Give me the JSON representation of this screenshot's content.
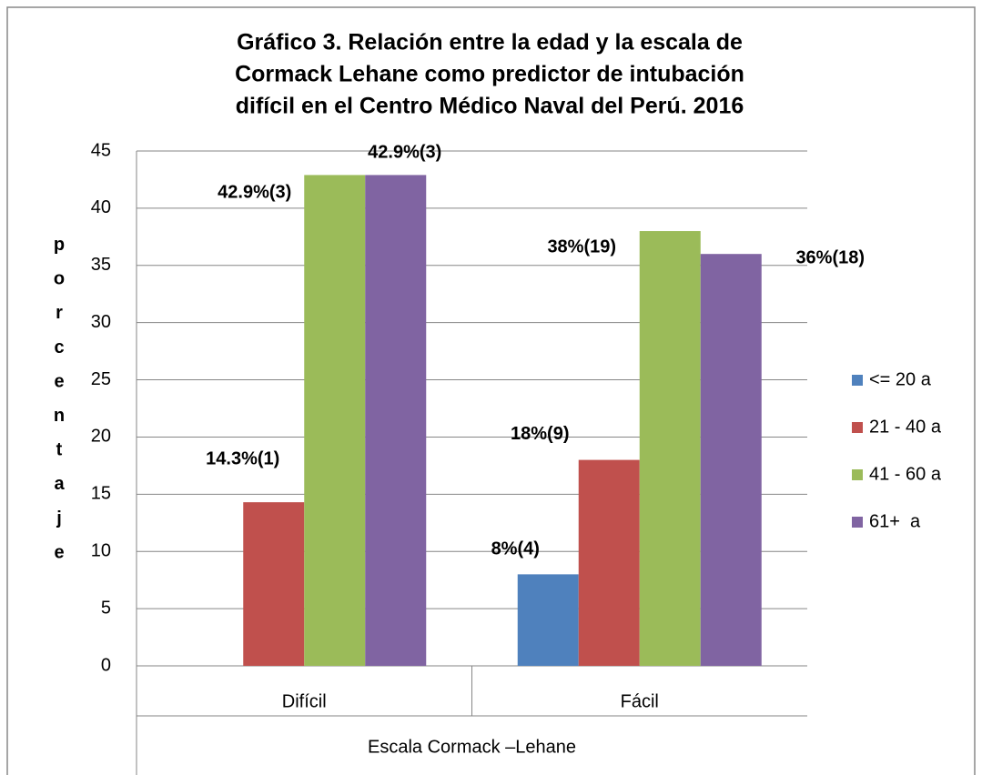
{
  "chart_data": {
    "type": "bar",
    "title": [
      "Gráfico 3. Relación entre la edad y la escala de",
      "Cormack Lehane como predictor de intubación",
      "difícil en el Centro Médico Naval del Perú. 2016"
    ],
    "y_label": "porcentaje",
    "x_label": "Escala Cormack –Lehane",
    "categories": [
      "Difícil",
      "Fácil"
    ],
    "series": [
      {
        "name": "<= 20 a",
        "color": "#4f81bd",
        "values": [
          0,
          8
        ],
        "value_labels": [
          null,
          "8%(4)"
        ]
      },
      {
        "name": "21 - 40 a",
        "color": "#c0504d",
        "values": [
          14.3,
          18
        ],
        "value_labels": [
          "14.3%(1)",
          "18%(9)"
        ]
      },
      {
        "name": "41 - 60 a",
        "color": "#9bbb59",
        "values": [
          42.9,
          38
        ],
        "value_labels": [
          "42.9%(3)",
          "38%(19)"
        ]
      },
      {
        "name": "61+  a",
        "color": "#8064a2",
        "values": [
          42.9,
          36
        ],
        "value_labels": [
          "42.9%(3)",
          "36%(18)"
        ]
      }
    ],
    "ylim": [
      0,
      45
    ],
    "yticks": [
      0,
      5,
      10,
      15,
      20,
      25,
      30,
      35,
      40,
      45
    ],
    "grid": true,
    "legend": "right"
  }
}
